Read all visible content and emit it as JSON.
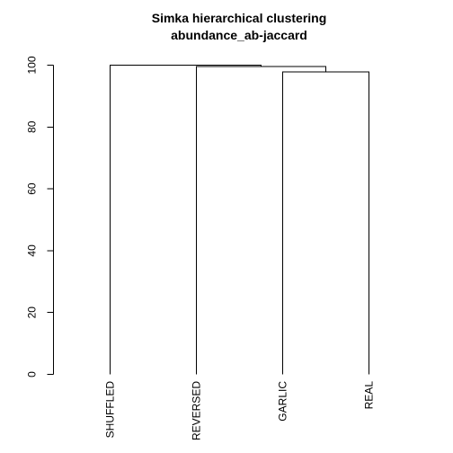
{
  "chart_data": {
    "type": "dendrogram",
    "title": "Simka hierarchical clustering",
    "subtitle": "abundance_ab-jaccard",
    "xlabel": "",
    "ylabel": "",
    "ylim": [
      0,
      100
    ],
    "yticks": [
      0,
      20,
      40,
      60,
      80,
      100
    ],
    "leaves": [
      "SHUFFLED",
      "REVERSED",
      "GARLIC",
      "REAL"
    ],
    "merges": [
      {
        "left": "GARLIC",
        "right": "REAL",
        "height": 97.8
      },
      {
        "left": "REVERSED",
        "right": "GARLIC+REAL",
        "height": 99.5
      },
      {
        "left": "SHUFFLED",
        "right": "REVERSED+GARLIC+REAL",
        "height": 100
      }
    ],
    "grid": false,
    "line_color": "#000000"
  }
}
